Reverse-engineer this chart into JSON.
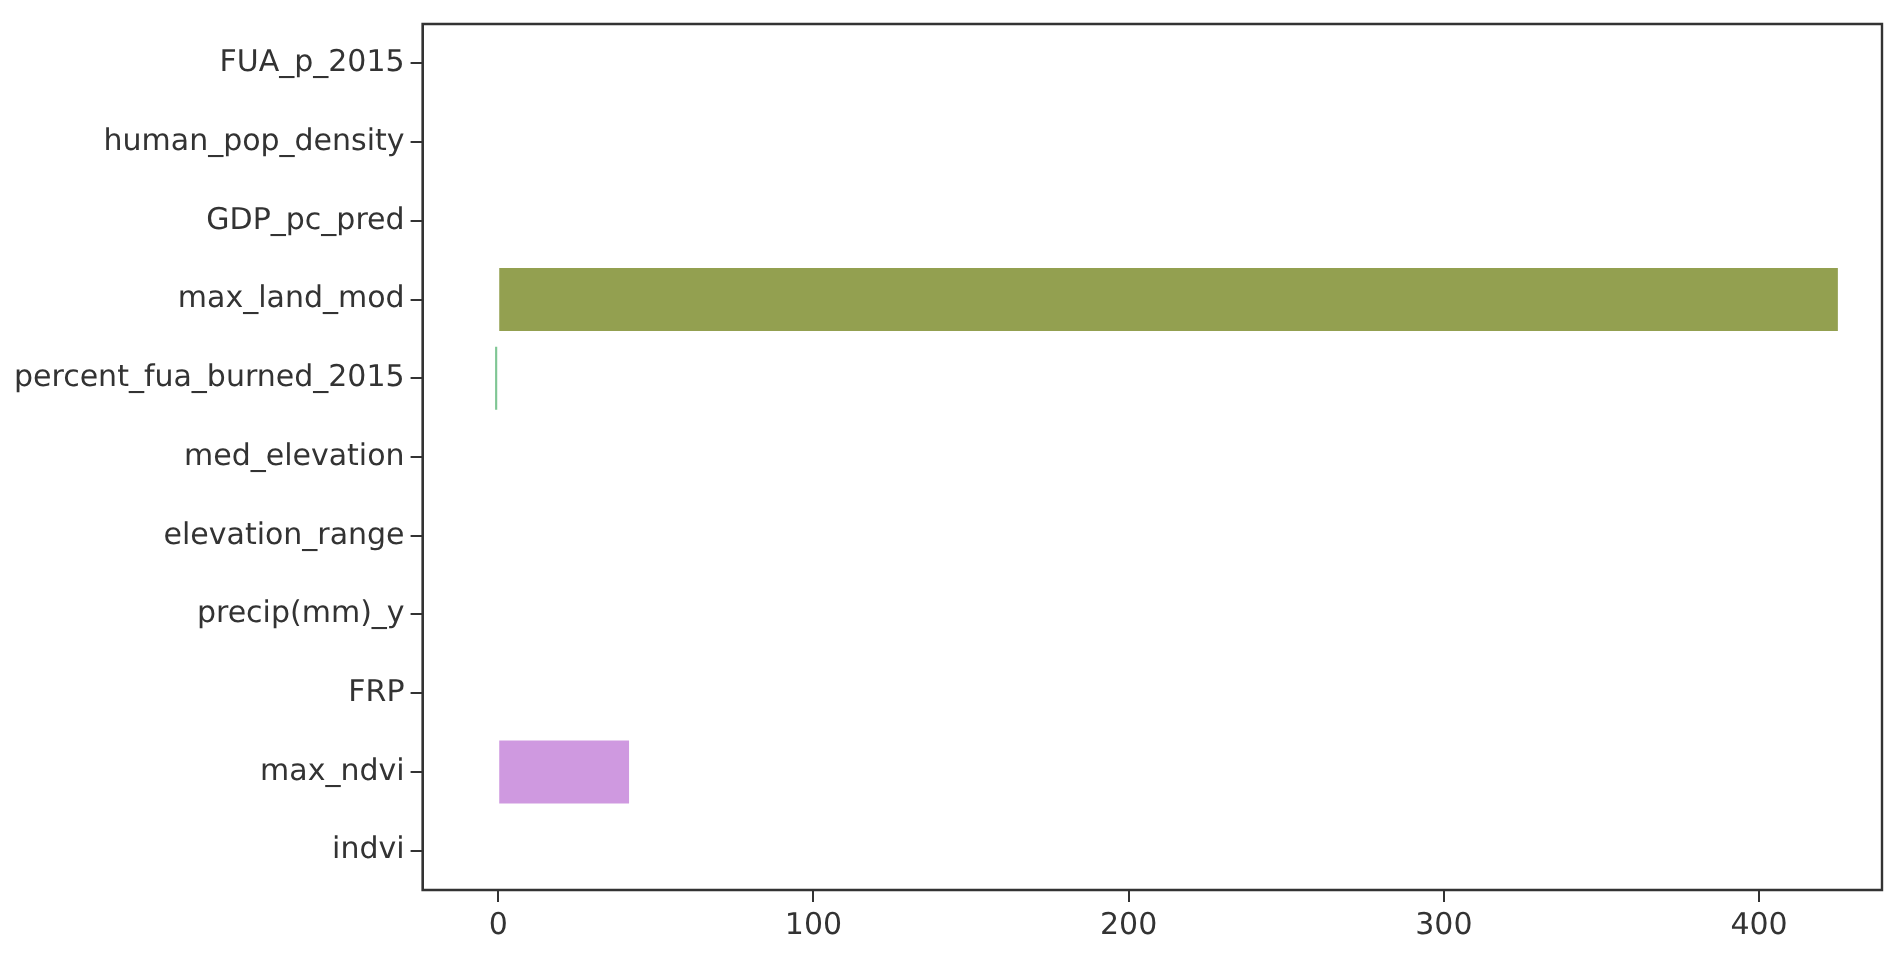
{
  "chart_data": {
    "type": "bar",
    "orientation": "horizontal",
    "categories": [
      "FUA_p_2015",
      "human_pop_density",
      "GDP_pc_pred",
      "max_land_mod",
      "percent_fua_burned_2015",
      "med_elevation",
      "elevation_range",
      "precip(mm)_y",
      "FRP",
      "max_ndvi",
      "indvi"
    ],
    "values": [
      0,
      0,
      0,
      425,
      -1,
      0,
      0,
      0,
      0,
      41.5,
      0
    ],
    "colors": [
      "#e1817f",
      "#d49a5a",
      "#b6a14f",
      "#93a050",
      "#7fc694",
      "#5fb59c",
      "#5eb0b6",
      "#6fa8d6",
      "#9e9ee0",
      "#cf99e0",
      "#e08fc0"
    ],
    "xlim": [
      -24,
      439
    ],
    "xticks": [
      0,
      100,
      200,
      300,
      400
    ],
    "grid": false
  }
}
